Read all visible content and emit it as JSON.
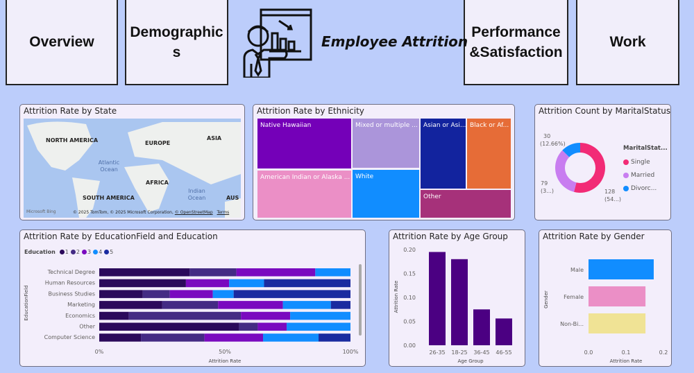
{
  "nav": {
    "overview": "Overview",
    "demographics": "Demographics",
    "performance": "Performance &Satisfaction",
    "work": "Work"
  },
  "header": {
    "title": "Employee Attrition",
    "icon": "presenter-chart-icon"
  },
  "map": {
    "title": "Attrition Rate by State",
    "labels": [
      "NORTH AMERICA",
      "EUROPE",
      "ASIA",
      "AFRICA",
      "SOUTH AMERICA",
      "AUS"
    ],
    "oceans": [
      "Atlantic Ocean",
      "Indian Ocean"
    ],
    "bing": "Microsoft Bing",
    "copyright": "© 2025 TomTom, © 2025 Microsoft Corporation,",
    "osm": "© OpenStreetMap",
    "terms": "Terms"
  },
  "ethnicity": {
    "title": "Attrition Rate by Ethnicity",
    "tiles": [
      {
        "label": "Native Hawaiian",
        "color": "#7400b8"
      },
      {
        "label": "American Indian or Alaska ...",
        "color": "#eb8fc6"
      },
      {
        "label": "Mixed or multiple ...",
        "color": "#ab95da"
      },
      {
        "label": "White",
        "color": "#118dff"
      },
      {
        "label": "Asian or Asi...",
        "color": "#12239e"
      },
      {
        "label": "Black or Af...",
        "color": "#e66c37"
      },
      {
        "label": "Other",
        "color": "#a6317a"
      }
    ]
  },
  "marital": {
    "title": "Attrition Count by MaritalStatus",
    "legend_title": "MaritalStat...",
    "slices": [
      {
        "name": "Single",
        "value": 128,
        "label": "128",
        "pct": "(54...)",
        "color": "#f22b76"
      },
      {
        "name": "Married",
        "value": 79,
        "label": "79",
        "pct": "(3...)",
        "color": "#c87df0"
      },
      {
        "name": "Divorc...",
        "value": 30,
        "label": "30",
        "pct": "(12.66%)",
        "color": "#118dff"
      }
    ]
  },
  "chart_data": [
    {
      "type": "bar",
      "orientation": "horizontal",
      "stacked": "100%",
      "title": "Attrition Rate by EducationField and Education",
      "legend_title": "Education",
      "legend_placement": "top-left",
      "xlabel": "Attrition Rate",
      "ylabel": "EducationField",
      "xticks": [
        "0%",
        "50%",
        "100%"
      ],
      "categories": [
        "Technical Degree",
        "Human Resources",
        "Business Studies",
        "Marketing",
        "Economics",
        "Other",
        "Computer Science"
      ],
      "series": [
        {
          "name": "1",
          "color": "#2b0a5b",
          "values": [
            36,
            34.5,
            17.3,
            25.1,
            11.8,
            55.7,
            16.6
          ]
        },
        {
          "name": "2",
          "color": "#442b84",
          "values": [
            18.6,
            0,
            10.8,
            22.2,
            44.6,
            7.4,
            25.3
          ]
        },
        {
          "name": "3",
          "color": "#7a0abf",
          "values": [
            31.4,
            17.2,
            17.1,
            25.8,
            19.6,
            11.5,
            23.3
          ]
        },
        {
          "name": "4",
          "color": "#118dff",
          "values": [
            14,
            13.9,
            8.3,
            19.1,
            24,
            25.4,
            22.1
          ]
        },
        {
          "name": "5",
          "color": "#1a2ba0",
          "values": [
            0,
            34.4,
            46.5,
            7.8,
            0,
            0,
            12.7
          ]
        }
      ]
    },
    {
      "type": "bar",
      "title": "Attrition Rate by Age Group",
      "xlabel": "Age Group",
      "ylabel": "Attrition Rate",
      "color": "#4b0082",
      "categories": [
        "26-35",
        "18-25",
        "36-45",
        "46-55"
      ],
      "values": [
        0.195,
        0.18,
        0.075,
        0.056
      ],
      "ylim": [
        0,
        0.2
      ],
      "yticks": [
        "0.00",
        "0.05",
        "0.10",
        "0.15",
        "0.20"
      ]
    },
    {
      "type": "bar",
      "orientation": "horizontal",
      "title": "Attrition Rate by Gender",
      "xlabel": "Attrition Rate",
      "ylabel": "Gender",
      "categories": [
        "Male",
        "Female",
        "Non-Bi..."
      ],
      "values": [
        0.174,
        0.152,
        0.152
      ],
      "colors": [
        "#118dff",
        "#eb8fc6",
        "#f0e395"
      ],
      "xlim": [
        0,
        0.2
      ],
      "xticks": [
        "0.0",
        "0.1",
        "0.2"
      ]
    }
  ]
}
